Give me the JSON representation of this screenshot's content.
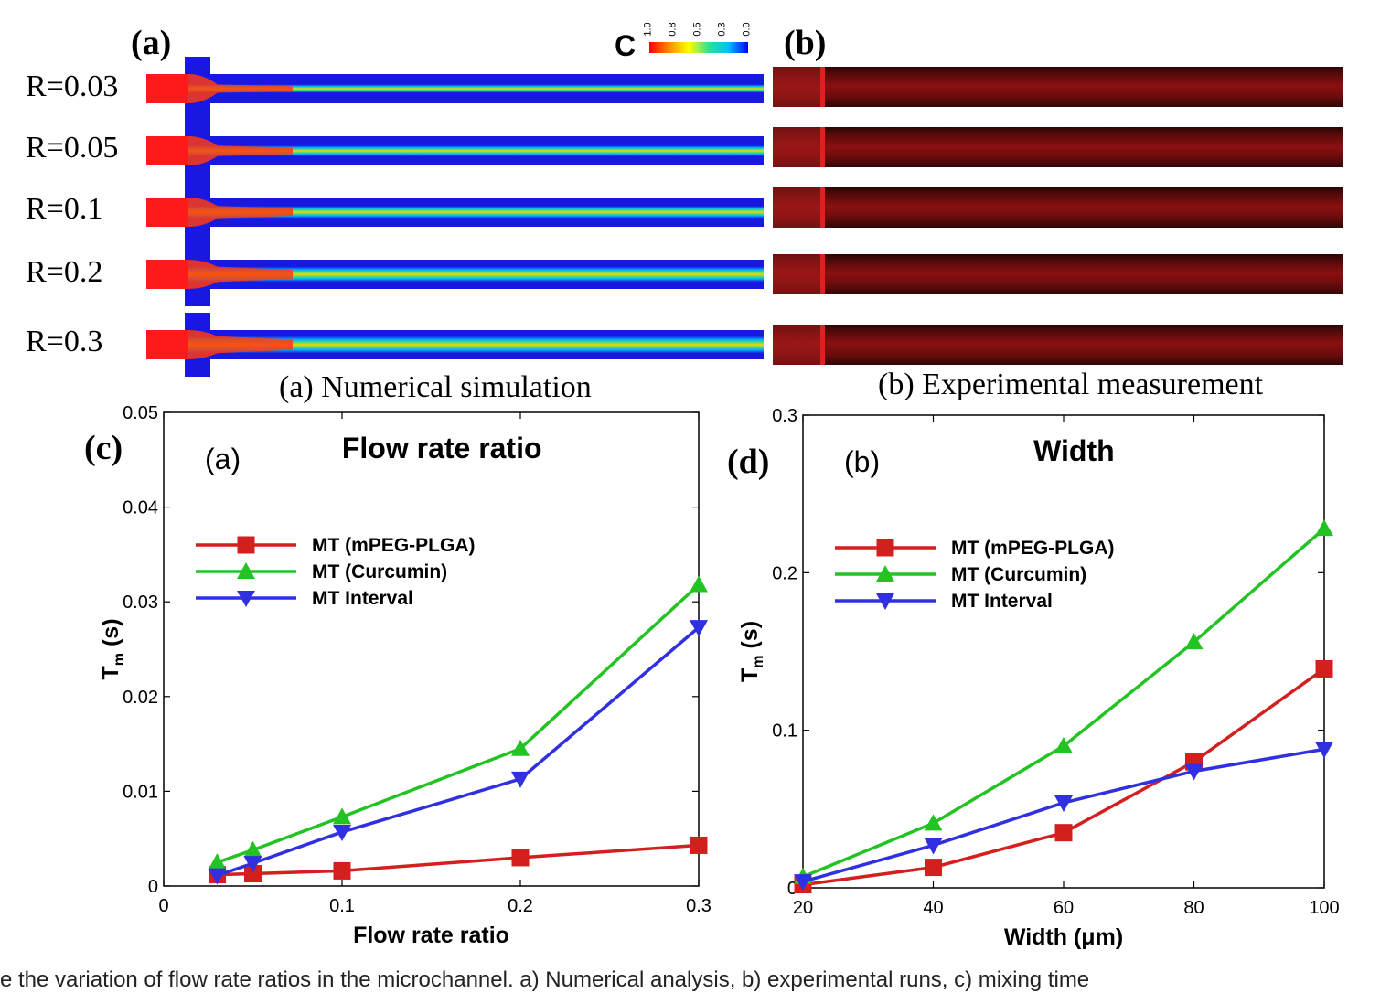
{
  "panels": {
    "a_letter": "(a)",
    "b_letter": "(b)",
    "c_letter": "(c)",
    "d_letter": "(d)"
  },
  "colorbar": {
    "label": "C",
    "ticks": [
      "1.0",
      "0.8",
      "0.5",
      "0.3",
      "0.0"
    ]
  },
  "rows": [
    {
      "label": "R=0.03",
      "jet_width_fraction": 0.28
    },
    {
      "label": "R=0.05",
      "jet_width_fraction": 0.36
    },
    {
      "label": "R=0.1",
      "jet_width_fraction": 0.42
    },
    {
      "label": "R=0.2",
      "jet_width_fraction": 0.52
    },
    {
      "label": "R=0.3",
      "jet_width_fraction": 0.58
    }
  ],
  "captions": {
    "a": "(a) Numerical simulation",
    "b": "(b) Experimental measurement"
  },
  "colors": {
    "mpeg": "#d41f1f",
    "curcumin": "#22c322",
    "interval": "#3030e0",
    "sim_blue": "#1818e0",
    "sim_red": "#ff1a1a"
  },
  "chart_data": [
    {
      "type": "line",
      "title": "Flow rate ratio",
      "inner_label": "(a)",
      "xlabel": "Flow rate ratio",
      "ylabel": "T",
      "ylabel_sub": "m",
      "ylabel_unit": " (s)",
      "xlim": [
        0,
        0.3
      ],
      "ylim": [
        0,
        0.05
      ],
      "xticks": [
        0,
        0.1,
        0.2,
        0.3
      ],
      "xtick_labels": [
        "0",
        "0.1",
        "0.2",
        "0.3"
      ],
      "yticks": [
        0,
        0.01,
        0.02,
        0.03,
        0.04,
        0.05
      ],
      "ytick_labels": [
        "0",
        "0.01",
        "0.02",
        "0.03",
        "0.04",
        "0.05"
      ],
      "legend_position": "upper-left",
      "x": [
        0.03,
        0.05,
        0.1,
        0.2,
        0.3
      ],
      "series": [
        {
          "name": "MT (mPEG-PLGA)",
          "marker": "square",
          "color": "#d41f1f",
          "values": [
            0.0012,
            0.0013,
            0.0016,
            0.003,
            0.0043
          ]
        },
        {
          "name": "MT (Curcumin)",
          "marker": "triangle-up",
          "color": "#22c322",
          "values": [
            0.0025,
            0.0038,
            0.0073,
            0.0145,
            0.0318
          ]
        },
        {
          "name": "MT Interval",
          "marker": "triangle-down",
          "color": "#3030e0",
          "values": [
            0.0011,
            0.0024,
            0.0057,
            0.0113,
            0.0273
          ]
        }
      ]
    },
    {
      "type": "line",
      "title": "Width",
      "inner_label": "(b)",
      "xlabel": "Width (μm)",
      "ylabel": "T",
      "ylabel_sub": "m",
      "ylabel_unit": " (s)",
      "xlim": [
        20,
        100
      ],
      "ylim": [
        0,
        0.3
      ],
      "xticks": [
        20,
        40,
        60,
        80,
        100
      ],
      "xtick_labels": [
        "20",
        "40",
        "60",
        "80",
        "100"
      ],
      "yticks": [
        0,
        0.1,
        0.2,
        0.3
      ],
      "ytick_labels": [
        "0",
        "0.1",
        "0.2",
        "0.3"
      ],
      "legend_position": "upper-left",
      "x": [
        20,
        40,
        60,
        80,
        100
      ],
      "series": [
        {
          "name": "MT (mPEG-PLGA)",
          "marker": "square",
          "color": "#d41f1f",
          "values": [
            0.002,
            0.013,
            0.035,
            0.08,
            0.139
          ]
        },
        {
          "name": "MT (Curcumin)",
          "marker": "triangle-up",
          "color": "#22c322",
          "values": [
            0.007,
            0.041,
            0.09,
            0.156,
            0.228
          ]
        },
        {
          "name": "MT Interval",
          "marker": "triangle-down",
          "color": "#3030e0",
          "values": [
            0.004,
            0.027,
            0.054,
            0.074,
            0.088
          ]
        }
      ]
    }
  ],
  "bottom_caption": "e the variation of flow rate ratios in the microchannel. a) Numerical analysis, b) experimental runs, c) mixing time"
}
